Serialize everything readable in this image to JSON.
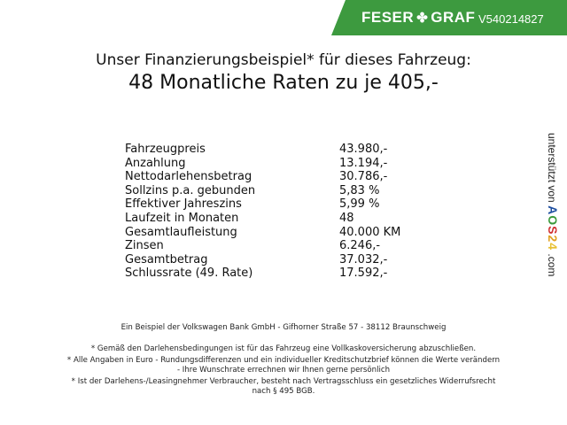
{
  "header": {
    "brand_left": "FESER",
    "brand_right": "GRAF",
    "brand_icon": "clover-icon",
    "vehicle_id": "V540214827",
    "brand_color": "#3d9a3f"
  },
  "title": {
    "line1": "Unser Finanzierungsbeispiel* für dieses Fahrzeug:",
    "line2": "48 Monatliche Raten zu je 405,-"
  },
  "rows": [
    {
      "label": "Fahrzeugpreis",
      "value": "43.980,-"
    },
    {
      "label": "Anzahlung",
      "value": "13.194,-"
    },
    {
      "label": "Nettodarlehensbetrag",
      "value": "30.786,-"
    },
    {
      "label": "Sollzins p.a. gebunden",
      "value": "5,83 %"
    },
    {
      "label": "Effektiver Jahreszins",
      "value": "5,99 %"
    },
    {
      "label": "Laufzeit in Monaten",
      "value": "48"
    },
    {
      "label": "Gesamtlaufleistung",
      "value": "40.000 KM"
    },
    {
      "label": "Zinsen",
      "value": "6.246,-"
    },
    {
      "label": "Gesamtbetrag",
      "value": "37.032,-"
    },
    {
      "label": "Schlussrate (49. Rate)",
      "value": "17.592,-"
    }
  ],
  "side": {
    "text": "unterstützt von",
    "logo": "AOS24",
    "suffix": ".com"
  },
  "footer": {
    "bank": "Ein Beispiel der Volkswagen Bank GmbH - Gifhorner Straße 57 - 38112 Braunschweig",
    "note1": "* Gemäß den Darlehensbedingungen ist für das Fahrzeug eine Vollkaskoversicherung abzuschließen.",
    "note2a": "* Alle Angaben in Euro - Rundungsdifferenzen und ein individueller Kreditschutzbrief können die Werte verändern",
    "note2b": "- Ihre Wunschrate errechnen wir Ihnen gerne persönlich",
    "note3a": "* Ist der Darlehens-/Leasingnehmer Verbraucher, besteht nach Vertragsschluss ein gesetzliches Widerrufsrecht",
    "note3b": "nach § 495 BGB."
  }
}
